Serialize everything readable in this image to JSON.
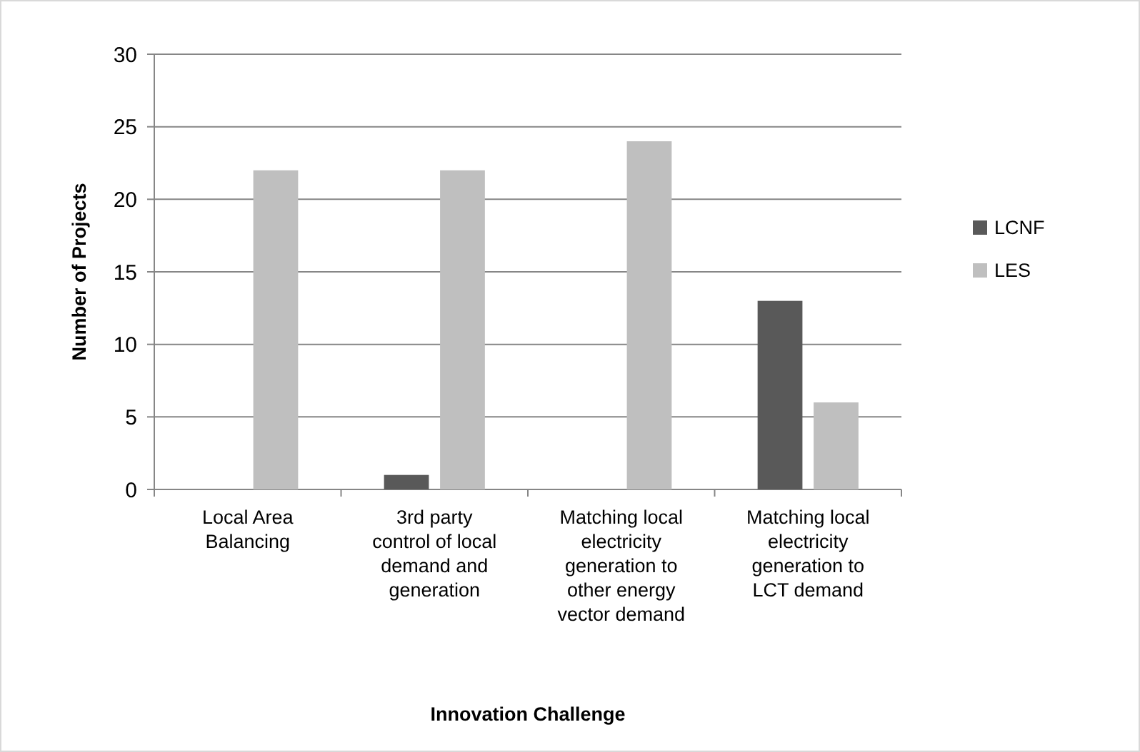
{
  "chart_data": {
    "type": "bar",
    "xlabel": "Innovation Challenge",
    "ylabel": "Number of Projects",
    "categories": [
      "Local Area Balancing",
      "3rd party control of local demand and generation",
      "Matching local electricity generation to other energy vector demand",
      "Matching local electricity generation to LCT demand"
    ],
    "series": [
      {
        "name": "LCNF",
        "color": "#595959",
        "values": [
          0,
          1,
          0,
          13
        ]
      },
      {
        "name": "LES",
        "color": "#bfbfbf",
        "values": [
          22,
          22,
          24,
          6
        ]
      }
    ],
    "ylim": [
      0,
      30
    ],
    "yticks": [
      0,
      5,
      10,
      15,
      20,
      25,
      30
    ],
    "grid": "y",
    "legend": "right"
  }
}
